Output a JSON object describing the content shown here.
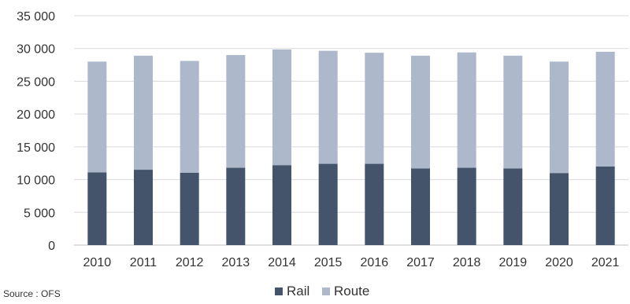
{
  "chart_data": {
    "type": "bar",
    "stacked": true,
    "categories": [
      "2010",
      "2011",
      "2012",
      "2013",
      "2014",
      "2015",
      "2016",
      "2017",
      "2018",
      "2019",
      "2020",
      "2021"
    ],
    "series": [
      {
        "name": "Rail",
        "color": "#44546a",
        "values": [
          11100,
          11500,
          11050,
          11800,
          12200,
          12400,
          12400,
          11700,
          11800,
          11700,
          11000,
          12000
        ]
      },
      {
        "name": "Route",
        "color": "#adb9ca",
        "values": [
          16900,
          17400,
          17050,
          17200,
          17650,
          17250,
          16950,
          17200,
          17600,
          17200,
          17000,
          17500
        ]
      }
    ],
    "ylim": [
      0,
      35000
    ],
    "yticks": [
      {
        "value": 0,
        "label": "0"
      },
      {
        "value": 5000,
        "label": "5 000"
      },
      {
        "value": 10000,
        "label": "10 000"
      },
      {
        "value": 15000,
        "label": "15 000"
      },
      {
        "value": 20000,
        "label": "20 000"
      },
      {
        "value": 25000,
        "label": "25 000"
      },
      {
        "value": 30000,
        "label": "30 000"
      },
      {
        "value": 35000,
        "label": "35 000"
      }
    ],
    "grid": true,
    "legend_position": "bottom-center",
    "title": "",
    "xlabel": "",
    "ylabel": ""
  },
  "source": "Source : OFS"
}
